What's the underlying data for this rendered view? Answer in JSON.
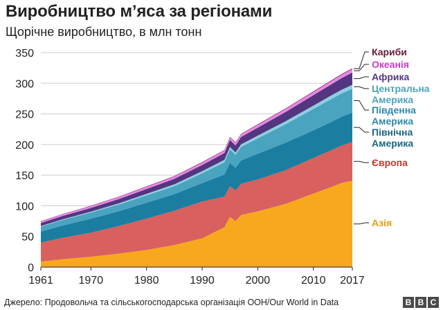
{
  "chart_data": {
    "type": "area",
    "title": "Виробництво м’яса за регіонами",
    "subtitle": "Щорічне виробництво, в млн тонн",
    "xlabel": "",
    "ylabel": "",
    "x_ticks": [
      "1961",
      "1970",
      "1980",
      "1990",
      "2000",
      "2010",
      "2017"
    ],
    "y_ticks": [
      "0",
      "50",
      "100",
      "150",
      "200",
      "250",
      "300",
      "350"
    ],
    "xlim": [
      1961,
      2017
    ],
    "ylim": [
      0,
      350
    ],
    "grid": true,
    "x": [
      1961,
      1965,
      1970,
      1975,
      1980,
      1985,
      1990,
      1994,
      1995,
      1996,
      1997,
      2000,
      2005,
      2010,
      2013,
      2015,
      2017
    ],
    "series": [
      {
        "name": "Азія",
        "color": "#f8a81c",
        "values": [
          9,
          13,
          17,
          22,
          28,
          36,
          47,
          65,
          82,
          75,
          85,
          91,
          103,
          120,
          130,
          137,
          141
        ]
      },
      {
        "name": "Європа",
        "color": "#d8605f",
        "values": [
          31,
          35,
          39,
          45,
          51,
          56,
          60,
          50,
          50,
          50,
          51,
          52,
          55,
          58,
          60,
          61,
          63
        ]
      },
      {
        "name": "Північна Америка",
        "color": "#1b7ea0",
        "values": [
          18,
          20,
          23,
          24,
          26,
          27,
          30,
          36,
          38,
          37,
          38,
          42,
          45,
          45,
          46,
          47,
          48
        ]
      },
      {
        "name": "Південна Америка",
        "color": "#4aa3bf",
        "values": [
          8,
          9,
          10,
          11,
          12,
          13,
          16,
          20,
          22,
          21,
          22,
          25,
          30,
          35,
          37,
          38,
          39
        ]
      },
      {
        "name": "Центральна Америка",
        "color": "#8dcfe0",
        "values": [
          1,
          1.2,
          1.5,
          2,
          2.5,
          3,
          3.5,
          4,
          4,
          4,
          4.2,
          4.5,
          5,
          5.5,
          6,
          6,
          6.5
        ]
      },
      {
        "name": "Африка",
        "color": "#533580",
        "values": [
          5,
          5.5,
          6,
          7,
          8,
          9,
          10,
          11,
          11.5,
          11.5,
          12,
          13,
          15,
          17,
          18,
          19,
          20
        ]
      },
      {
        "name": "Океанія",
        "color": "#e887e8",
        "values": [
          2.3,
          2.6,
          3,
          3.3,
          3.5,
          3.8,
          4,
          4.2,
          4.3,
          4.3,
          4.4,
          4.6,
          5,
          5.2,
          5.5,
          5.6,
          5.8
        ]
      },
      {
        "name": "Кариби",
        "color": "#6a1a3a",
        "values": [
          0.5,
          0.5,
          0.6,
          0.6,
          0.7,
          0.7,
          0.8,
          0.8,
          0.8,
          0.8,
          0.8,
          0.9,
          0.9,
          1,
          1,
          1,
          1
        ]
      }
    ],
    "legend_labels": [
      {
        "lines": [
          "Кариби"
        ],
        "color": "#6a1a3a"
      },
      {
        "lines": [
          "Океанія"
        ],
        "color": "#c93bc9"
      },
      {
        "lines": [
          "Африка"
        ],
        "color": "#533580"
      },
      {
        "lines": [
          "Центральна",
          "Америка"
        ],
        "color": "#4aa3bf"
      },
      {
        "lines": [
          "Південна",
          "Америка"
        ],
        "color": "#2f88a8"
      },
      {
        "lines": [
          "Північна",
          "Америка"
        ],
        "color": "#1a6680"
      },
      {
        "lines": [
          "Європа"
        ],
        "color": "#c0392b"
      },
      {
        "lines": [
          "Азія"
        ],
        "color": "#e89a10"
      }
    ]
  },
  "footer": {
    "source": "Джерело: Продовольча та сільськогосподарська організація ООН/Our World in Data",
    "logo": [
      "B",
      "B",
      "C"
    ]
  }
}
